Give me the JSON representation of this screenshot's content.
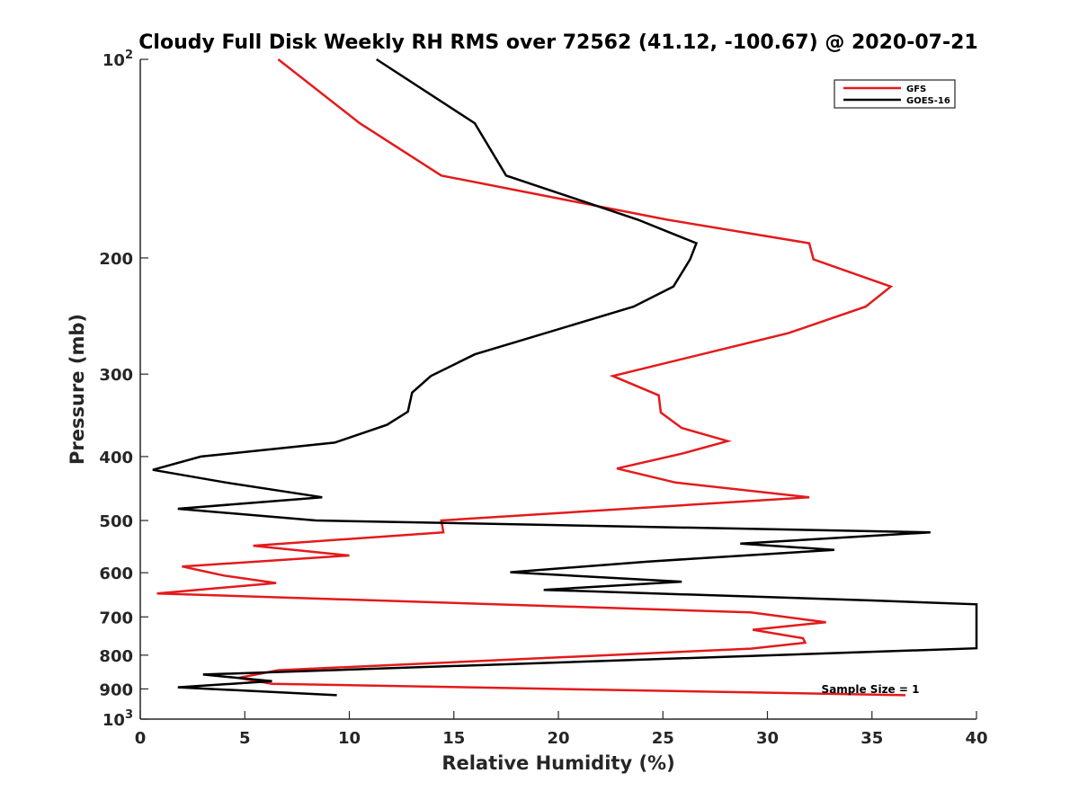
{
  "chart_data": {
    "type": "line",
    "title": "Cloudy Full Disk Weekly RH RMS over 72562 (41.12, -100.67) @ 2020-07-21",
    "xlabel": "Relative Humidity (%)",
    "ylabel": "Pressure (mb)",
    "xlim": [
      0,
      40
    ],
    "ylim": [
      100,
      1000
    ],
    "y_scale": "log",
    "y_reversed": true,
    "grid": false,
    "legend_position": "top-right",
    "x_ticks": [
      "0",
      "5",
      "10",
      "15",
      "20",
      "25",
      "30",
      "35",
      "40"
    ],
    "y_ticks": [
      {
        "base": "10",
        "exp": "2",
        "value": 100
      },
      {
        "base": "200",
        "exp": "",
        "value": 200
      },
      {
        "base": "300",
        "exp": "",
        "value": 300
      },
      {
        "base": "400",
        "exp": "",
        "value": 400
      },
      {
        "base": "500",
        "exp": "",
        "value": 500
      },
      {
        "base": "600",
        "exp": "",
        "value": 600
      },
      {
        "base": "700",
        "exp": "",
        "value": 700
      },
      {
        "base": "800",
        "exp": "",
        "value": 800
      },
      {
        "base": "900",
        "exp": "",
        "value": 900
      },
      {
        "base": "10",
        "exp": "3",
        "value": 1000
      }
    ],
    "series": [
      {
        "name": "GFS",
        "color": "#e41a1c",
        "points": [
          [
            6.6,
            100
          ],
          [
            10.5,
            125
          ],
          [
            14.4,
            150
          ],
          [
            25.2,
            175
          ],
          [
            32.0,
            190
          ],
          [
            32.2,
            201
          ],
          [
            35.9,
            221
          ],
          [
            34.7,
            237
          ],
          [
            31.0,
            260
          ],
          [
            22.6,
            302
          ],
          [
            24.8,
            323
          ],
          [
            24.9,
            343
          ],
          [
            25.9,
            362
          ],
          [
            28.1,
            379
          ],
          [
            25.9,
            396
          ],
          [
            22.8,
            417
          ],
          [
            25.6,
            438
          ],
          [
            32.0,
            461
          ],
          [
            14.4,
            500
          ],
          [
            14.5,
            521
          ],
          [
            5.4,
            546
          ],
          [
            10.0,
            565
          ],
          [
            2.0,
            587
          ],
          [
            4.0,
            606
          ],
          [
            6.5,
            622
          ],
          [
            0.8,
            645
          ],
          [
            29.2,
            689
          ],
          [
            32.8,
            713
          ],
          [
            29.3,
            732
          ],
          [
            31.7,
            754
          ],
          [
            31.8,
            766
          ],
          [
            29.2,
            782
          ],
          [
            6.6,
            843
          ],
          [
            4.7,
            866
          ],
          [
            6.3,
            884
          ],
          [
            36.6,
            920
          ]
        ]
      },
      {
        "name": "GOES-16",
        "color": "#000000",
        "points": [
          [
            11.3,
            100
          ],
          [
            16.0,
            125
          ],
          [
            17.5,
            150
          ],
          [
            23.8,
            175
          ],
          [
            26.6,
            190
          ],
          [
            26.3,
            201
          ],
          [
            25.5,
            221
          ],
          [
            23.6,
            237
          ],
          [
            16.0,
            280
          ],
          [
            13.9,
            302
          ],
          [
            13.0,
            320
          ],
          [
            12.8,
            342
          ],
          [
            11.8,
            358
          ],
          [
            9.3,
            381
          ],
          [
            2.9,
            400
          ],
          [
            0.6,
            419
          ],
          [
            4.1,
            438
          ],
          [
            8.7,
            461
          ],
          [
            1.8,
            480
          ],
          [
            8.4,
            500
          ],
          [
            37.8,
            521
          ],
          [
            28.7,
            542
          ],
          [
            33.2,
            554
          ],
          [
            24.3,
            577
          ],
          [
            17.7,
            599
          ],
          [
            25.9,
            619
          ],
          [
            19.3,
            637
          ],
          [
            35.0,
            661
          ],
          [
            40.0,
            670
          ],
          [
            40.0,
            781
          ],
          [
            3.0,
            856
          ],
          [
            6.3,
            876
          ],
          [
            1.8,
            895
          ],
          [
            9.4,
            920
          ]
        ]
      }
    ],
    "annotations": [
      "Sample Size = 1"
    ]
  }
}
